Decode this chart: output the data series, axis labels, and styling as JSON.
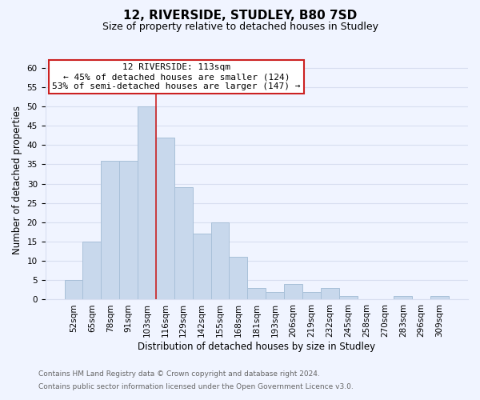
{
  "title": "12, RIVERSIDE, STUDLEY, B80 7SD",
  "subtitle": "Size of property relative to detached houses in Studley",
  "xlabel": "Distribution of detached houses by size in Studley",
  "ylabel": "Number of detached properties",
  "footer_line1": "Contains HM Land Registry data © Crown copyright and database right 2024.",
  "footer_line2": "Contains public sector information licensed under the Open Government Licence v3.0.",
  "bin_labels": [
    "52sqm",
    "65sqm",
    "78sqm",
    "91sqm",
    "103sqm",
    "116sqm",
    "129sqm",
    "142sqm",
    "155sqm",
    "168sqm",
    "181sqm",
    "193sqm",
    "206sqm",
    "219sqm",
    "232sqm",
    "245sqm",
    "258sqm",
    "270sqm",
    "283sqm",
    "296sqm",
    "309sqm"
  ],
  "bar_heights": [
    5,
    15,
    36,
    36,
    50,
    42,
    29,
    17,
    20,
    11,
    3,
    2,
    4,
    2,
    3,
    1,
    0,
    0,
    1,
    0,
    1
  ],
  "bar_color": "#c8d8ec",
  "bar_edge_color": "#a8c0d8",
  "highlight_line_color": "#cc2222",
  "property_size": 113,
  "pct_smaller": 45,
  "n_smaller": 124,
  "pct_larger_semi": 53,
  "n_larger_semi": 147,
  "ylim": [
    0,
    62
  ],
  "yticks": [
    0,
    5,
    10,
    15,
    20,
    25,
    30,
    35,
    40,
    45,
    50,
    55,
    60
  ],
  "background_color": "#f0f4ff",
  "grid_color": "#d8dff0",
  "title_fontsize": 11,
  "subtitle_fontsize": 9,
  "axis_label_fontsize": 8.5,
  "tick_fontsize": 7.5,
  "annotation_fontsize": 8,
  "footer_fontsize": 6.5
}
